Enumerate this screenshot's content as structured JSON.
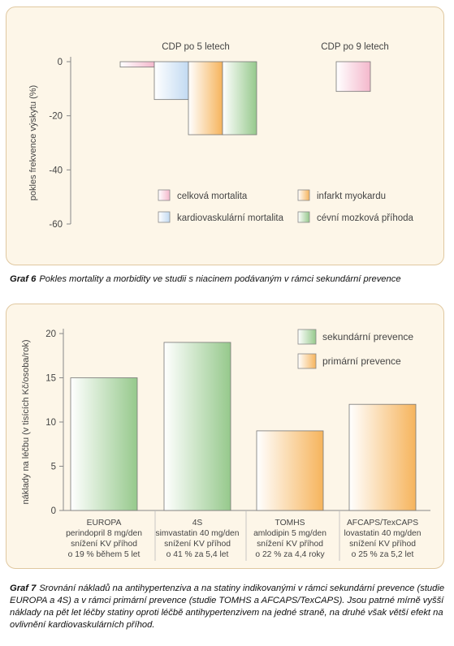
{
  "chart_data": [
    {
      "type": "bar",
      "ylabel": "pokles frekvence výskytu (%)",
      "ylim": [
        -60,
        0
      ],
      "yticks": [
        "0",
        "-20",
        "-40",
        "-60"
      ],
      "groups": [
        {
          "label": "CDP po 5 letech",
          "bars": [
            {
              "series": "celková mortalita",
              "value": -2
            },
            {
              "series": "kardiovaskulární mortalita",
              "value": -14
            },
            {
              "series": "infarkt myokardu",
              "value": -27
            },
            {
              "series": "cévní mozková příhoda",
              "value": -27
            }
          ]
        },
        {
          "label": "CDP po 9 letech",
          "bars": [
            {
              "series": "celková mortalita",
              "value": -11
            }
          ]
        }
      ],
      "legend": [
        {
          "name": "celková mortalita",
          "color": "#f4b8cc"
        },
        {
          "name": "infarkt myokardu",
          "color": "#f6b45c"
        },
        {
          "name": "kardiovaskulární mortalita",
          "color": "#c2daf2"
        },
        {
          "name": "cévní mozková příhoda",
          "color": "#96c98c"
        }
      ]
    },
    {
      "type": "bar",
      "ylabel": "náklady na léčbu (v tisících Kč/osoba/rok)",
      "ylim": [
        0,
        20
      ],
      "yticks": [
        "0",
        "5",
        "10",
        "15",
        "20"
      ],
      "categories": [
        [
          "EUROPA",
          "perindopril 8 mg/den",
          "snížení KV příhod",
          "o 19 % během 5 let"
        ],
        [
          "4S",
          "simvastatin 40 mg/den",
          "snížení KV příhod",
          "o 41 % za 5,4 let"
        ],
        [
          "TOMHS",
          "amlodipin 5 mg/den",
          "snížení KV příhod",
          "o 22 % za 4,4 roky"
        ],
        [
          "AFCAPS/TexCAPS",
          "lovastatin 40 mg/den",
          "snížení KV příhod",
          "o 25 % za 5,2 let"
        ]
      ],
      "values": [
        15,
        19,
        9,
        12
      ],
      "bar_series": [
        "sekundární prevence",
        "sekundární prevence",
        "primární prevence",
        "primární prevence"
      ],
      "legend": [
        {
          "name": "sekundární prevence",
          "color": "#96c98c"
        },
        {
          "name": "primární prevence",
          "color": "#f6b45c"
        }
      ]
    }
  ],
  "captions": {
    "cap1_label": "Graf 6",
    "cap1_text": "Pokles mortality a morbidity ve studii s niacinem podávaným v rámci sekundární prevence",
    "cap2_label": "Graf 7",
    "cap2_text": "Srovnání nákladů na antihypertenziva a na statiny indikovanými v rámci sekundární prevence (studie EUROPA a 4S) a v rámci primární prevence (studie TOMHS a AFCAPS/TexCAPS). Jsou patrné mírně vyšší náklady na pět let léčby statiny oproti léčbě antihypertenzivem na jedné straně, na druhé však větší efekt na ovlivnění kardiovaskulárních příhod."
  }
}
